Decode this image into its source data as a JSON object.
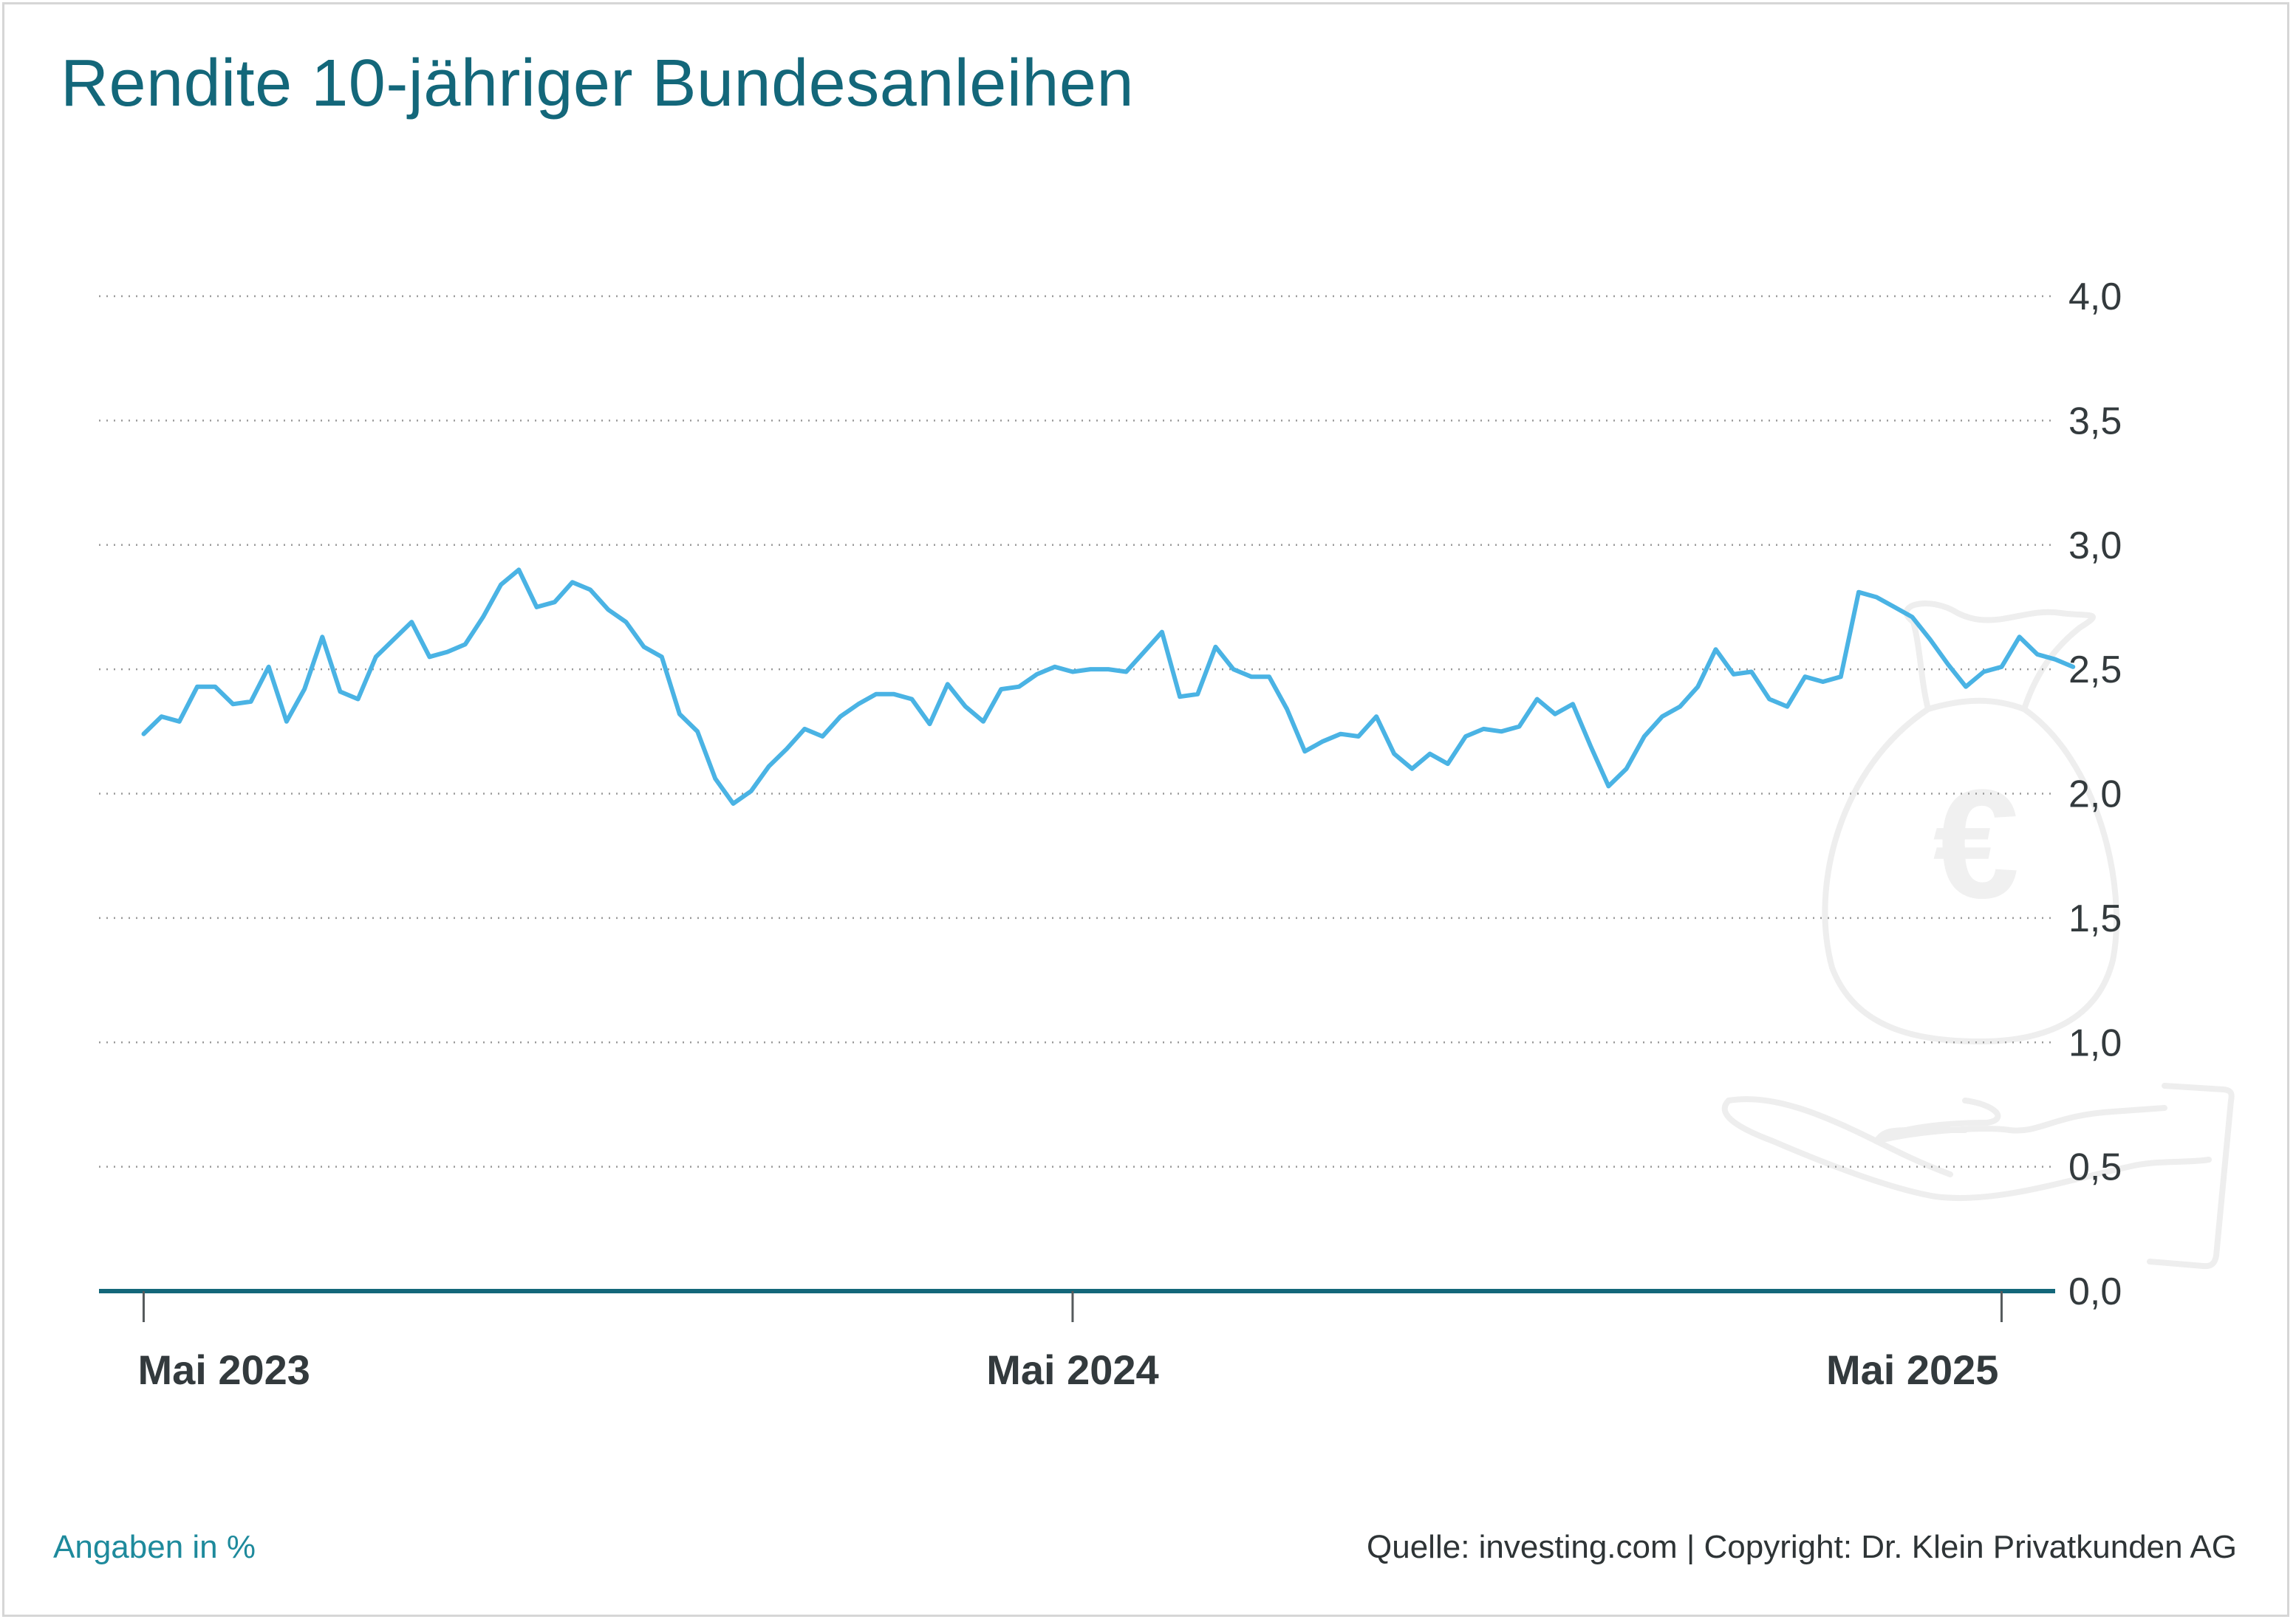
{
  "title": "Rendite 10-jähriger Bundesanleihen",
  "footer": {
    "unit_note": "Angaben in %",
    "source": "Quelle: investing.com | Copyright: Dr. Klein Privatkunden AG"
  },
  "colors": {
    "title": "#13677a",
    "line": "#4ab3e4",
    "axis": "#13677a",
    "grid": "#9a9a9a",
    "illustration": "#eeeeee"
  },
  "illustration_icon": "money-bag-euro-on-hand-icon",
  "chart_data": {
    "type": "line",
    "title": "Rendite 10-jähriger Bundesanleihen",
    "xlabel": "",
    "ylabel": "",
    "ylim": [
      0,
      4.0
    ],
    "y_ticks": [
      0,
      0.5,
      1.0,
      1.5,
      2.0,
      2.5,
      3.0,
      3.5,
      4.0
    ],
    "y_tick_labels": [
      "0,0",
      "0,5",
      "1,0",
      "1,5",
      "2,0",
      "2,5",
      "3,0",
      "3,5",
      "4,0"
    ],
    "x_tick_labels": [
      "Mai 2023",
      "Mai 2024",
      "Mai 2025"
    ],
    "x_tick_positions": [
      0,
      52,
      104
    ],
    "x_range": [
      -2.5,
      107
    ],
    "y_axis_position": "right",
    "grid": "horizontal-dotted",
    "series": [
      {
        "values": [
          2.24,
          2.31,
          2.29,
          2.43,
          2.43,
          2.36,
          2.37,
          2.51,
          2.29,
          2.42,
          2.63,
          2.41,
          2.38,
          2.55,
          2.62,
          2.69,
          2.55,
          2.57,
          2.6,
          2.71,
          2.84,
          2.9,
          2.75,
          2.77,
          2.85,
          2.82,
          2.74,
          2.69,
          2.59,
          2.55,
          2.32,
          2.25,
          2.06,
          1.96,
          2.01,
          2.11,
          2.18,
          2.26,
          2.23,
          2.31,
          2.36,
          2.4,
          2.4,
          2.38,
          2.28,
          2.44,
          2.35,
          2.29,
          2.42,
          2.43,
          2.48,
          2.51,
          2.49,
          2.5,
          2.5,
          2.49,
          2.57,
          2.65,
          2.39,
          2.4,
          2.59,
          2.5,
          2.47,
          2.47,
          2.34,
          2.17,
          2.21,
          2.24,
          2.23,
          2.31,
          2.16,
          2.1,
          2.16,
          2.12,
          2.23,
          2.26,
          2.25,
          2.27,
          2.38,
          2.32,
          2.36,
          2.19,
          2.03,
          2.1,
          2.23,
          2.31,
          2.35,
          2.43,
          2.58,
          2.48,
          2.49,
          2.38,
          2.35,
          2.47,
          2.45,
          2.47,
          2.81,
          2.79,
          2.75,
          2.71,
          2.62,
          2.52,
          2.43,
          2.49,
          2.51,
          2.63,
          2.56,
          2.54,
          2.51
        ]
      }
    ]
  }
}
